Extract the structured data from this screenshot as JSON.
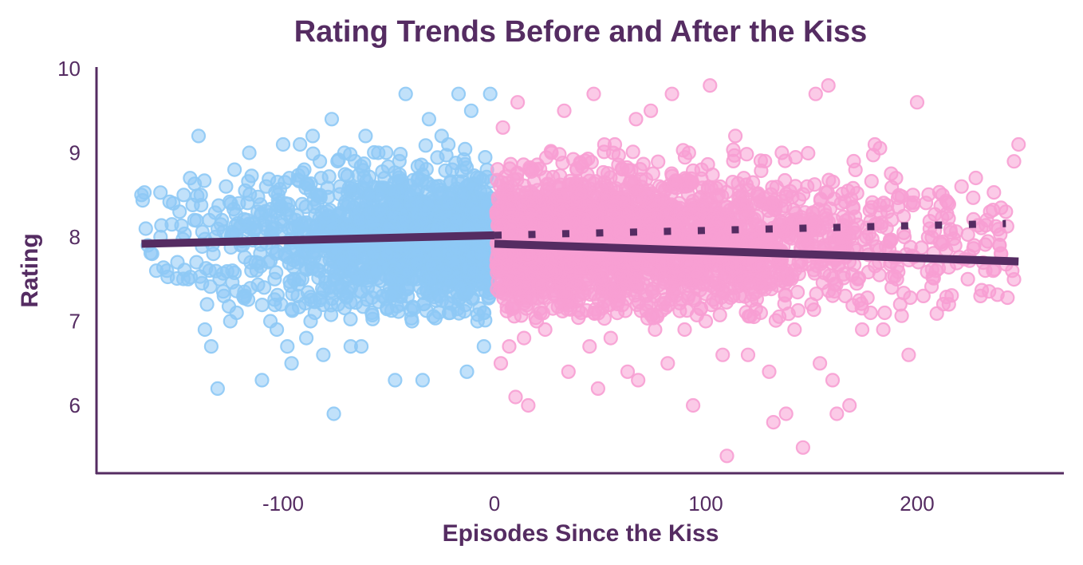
{
  "chart_data": {
    "type": "scatter",
    "title": "Rating Trends Before and After the Kiss",
    "xlabel": "Episodes Since the Kiss",
    "ylabel": "Rating",
    "xlim": [
      -170,
      250
    ],
    "ylim": [
      5.2,
      10.0
    ],
    "x_ticks": [
      "-100",
      "0",
      "100",
      "200"
    ],
    "y_ticks": [
      "6",
      "7",
      "8",
      "9",
      "10"
    ],
    "grid": false,
    "legend": "none",
    "colors": {
      "before": "#8ec9f5",
      "after": "#f79fd3",
      "trend": "#552c62",
      "text": "#552c62"
    },
    "series": [
      {
        "role": "before",
        "x_range": [
          -168,
          -1
        ],
        "points": [
          [
            -167,
            8.5
          ],
          [
            -165,
            8.1
          ],
          [
            -164,
            7.9
          ],
          [
            -162,
            7.8
          ],
          [
            -160,
            7.6
          ],
          [
            -158,
            8.0
          ],
          [
            -155,
            7.6
          ],
          [
            -152,
            8.4
          ],
          [
            -150,
            7.7
          ],
          [
            -149,
            8.3
          ],
          [
            -147,
            8.5
          ],
          [
            -145,
            7.5
          ],
          [
            -144,
            8.7
          ],
          [
            -142,
            8.2
          ],
          [
            -141,
            7.7
          ],
          [
            -140,
            9.2
          ],
          [
            -139,
            8.5
          ],
          [
            -137,
            6.9
          ],
          [
            -136,
            7.2
          ],
          [
            -135,
            8.2
          ],
          [
            -134,
            6.7
          ],
          [
            -133,
            7.8
          ],
          [
            -132,
            8.0
          ],
          [
            -131,
            6.2
          ],
          [
            -130,
            7.5
          ],
          [
            -129,
            8.2
          ],
          [
            -128,
            7.3
          ],
          [
            -127,
            8.6
          ],
          [
            -125,
            7.0
          ],
          [
            -124,
            7.6
          ],
          [
            -123,
            8.8
          ],
          [
            -122,
            7.1
          ],
          [
            -121,
            8.4
          ],
          [
            -120,
            7.9
          ],
          [
            -118,
            7.3
          ],
          [
            -117,
            8.2
          ],
          [
            -116,
            9.0
          ],
          [
            -115,
            7.6
          ],
          [
            -113,
            7.7
          ],
          [
            -112,
            8.3
          ],
          [
            -110,
            6.3
          ],
          [
            -109,
            7.4
          ],
          [
            -108,
            8.6
          ],
          [
            -106,
            7.0
          ],
          [
            -105,
            8.0
          ],
          [
            -104,
            7.5
          ],
          [
            -103,
            6.9
          ],
          [
            -102,
            8.4
          ],
          [
            -101,
            7.2
          ],
          [
            -100,
            9.1
          ],
          [
            -99,
            7.8
          ],
          [
            -98,
            6.7
          ],
          [
            -97,
            8.7
          ],
          [
            -96,
            6.5
          ],
          [
            -95,
            7.5
          ],
          [
            -94,
            8.2
          ],
          [
            -93,
            7.7
          ],
          [
            -92,
            9.1
          ],
          [
            -91,
            7.5
          ],
          [
            -90,
            8.8
          ],
          [
            -89,
            6.8
          ],
          [
            -88,
            7.9
          ],
          [
            -87,
            7.0
          ],
          [
            -86,
            9.2
          ],
          [
            -85,
            7.1
          ],
          [
            -84,
            8.5
          ],
          [
            -83,
            7.6
          ],
          [
            -82,
            8.7
          ],
          [
            -81,
            6.6
          ],
          [
            -80,
            7.9
          ],
          [
            -79,
            8.3
          ],
          [
            -78,
            7.4
          ],
          [
            -77,
            9.4
          ],
          [
            -76,
            5.9
          ],
          [
            -75,
            8.0
          ],
          [
            -74,
            7.2
          ],
          [
            -73,
            8.6
          ],
          [
            -72,
            7.7
          ],
          [
            -71,
            9.0
          ],
          [
            -70,
            7.3
          ],
          [
            -69,
            8.4
          ],
          [
            -68,
            6.7
          ],
          [
            -67,
            7.8
          ],
          [
            -66,
            8.9
          ],
          [
            -65,
            7.5
          ],
          [
            -64,
            8.2
          ],
          [
            -63,
            6.7
          ],
          [
            -62,
            7.9
          ],
          [
            -61,
            9.2
          ],
          [
            -60,
            7.4
          ],
          [
            -59,
            8.5
          ],
          [
            -58,
            7.1
          ],
          [
            -57,
            8.0
          ],
          [
            -56,
            7.6
          ],
          [
            -55,
            9.0
          ],
          [
            -54,
            8.3
          ],
          [
            -53,
            7.3
          ],
          [
            -52,
            8.7
          ],
          [
            -51,
            7.8
          ],
          [
            -50,
            8.1
          ],
          [
            -49,
            7.5
          ],
          [
            -48,
            8.4
          ],
          [
            -47,
            6.3
          ],
          [
            -46,
            7.9
          ],
          [
            -45,
            8.9
          ],
          [
            -44,
            7.2
          ],
          [
            -43,
            8.2
          ],
          [
            -42,
            9.7
          ],
          [
            -41,
            7.6
          ],
          [
            -40,
            8.5
          ],
          [
            -39,
            7.0
          ],
          [
            -38,
            8.0
          ],
          [
            -37,
            7.7
          ],
          [
            -36,
            8.7
          ],
          [
            -35,
            7.4
          ],
          [
            -34,
            6.3
          ],
          [
            -33,
            8.3
          ],
          [
            -32,
            7.9
          ],
          [
            -31,
            9.4
          ],
          [
            -30,
            7.5
          ],
          [
            -29,
            8.6
          ],
          [
            -28,
            7.8
          ],
          [
            -27,
            8.1
          ],
          [
            -26,
            7.3
          ],
          [
            -25,
            9.2
          ],
          [
            -24,
            8.0
          ],
          [
            -23,
            7.6
          ],
          [
            -22,
            8.4
          ],
          [
            -21,
            7.1
          ],
          [
            -20,
            8.8
          ],
          [
            -19,
            7.7
          ],
          [
            -18,
            8.2
          ],
          [
            -17,
            9.7
          ],
          [
            -16,
            7.4
          ],
          [
            -15,
            8.5
          ],
          [
            -14,
            7.9
          ],
          [
            -13,
            6.4
          ],
          [
            -12,
            8.1
          ],
          [
            -11,
            9.5
          ],
          [
            -10,
            7.6
          ],
          [
            -9,
            8.3
          ],
          [
            -8,
            7.0
          ],
          [
            -7,
            8.7
          ],
          [
            -6,
            7.8
          ],
          [
            -5,
            6.7
          ],
          [
            -4,
            8.4
          ],
          [
            -3,
            7.5
          ],
          [
            -2,
            9.7
          ],
          [
            -1,
            7.9
          ]
        ]
      },
      {
        "role": "after",
        "x_range": [
          1,
          250
        ],
        "points": [
          [
            1,
            8.3
          ],
          [
            2,
            7.6
          ],
          [
            3,
            6.5
          ],
          [
            4,
            9.3
          ],
          [
            5,
            7.9
          ],
          [
            7,
            6.7
          ],
          [
            8,
            8.6
          ],
          [
            9,
            7.2
          ],
          [
            10,
            6.1
          ],
          [
            11,
            9.6
          ],
          [
            12,
            7.8
          ],
          [
            13,
            8.4
          ],
          [
            14,
            6.8
          ],
          [
            15,
            7.4
          ],
          [
            16,
            6.0
          ],
          [
            18,
            8.8
          ],
          [
            20,
            7.0
          ],
          [
            22,
            8.1
          ],
          [
            24,
            6.9
          ],
          [
            25,
            7.6
          ],
          [
            27,
            9.0
          ],
          [
            29,
            7.3
          ],
          [
            31,
            8.5
          ],
          [
            33,
            9.5
          ],
          [
            35,
            6.4
          ],
          [
            37,
            7.9
          ],
          [
            39,
            8.8
          ],
          [
            41,
            7.1
          ],
          [
            43,
            8.2
          ],
          [
            45,
            6.7
          ],
          [
            47,
            9.7
          ],
          [
            49,
            6.2
          ],
          [
            51,
            7.5
          ],
          [
            53,
            8.6
          ],
          [
            55,
            6.8
          ],
          [
            57,
            9.1
          ],
          [
            59,
            7.3
          ],
          [
            61,
            8.4
          ],
          [
            63,
            6.4
          ],
          [
            65,
            7.8
          ],
          [
            67,
            9.4
          ],
          [
            68,
            6.3
          ],
          [
            70,
            8.0
          ],
          [
            72,
            7.2
          ],
          [
            74,
            9.5
          ],
          [
            76,
            6.9
          ],
          [
            78,
            8.6
          ],
          [
            80,
            7.5
          ],
          [
            82,
            6.5
          ],
          [
            84,
            9.7
          ],
          [
            86,
            7.9
          ],
          [
            88,
            8.3
          ],
          [
            90,
            6.9
          ],
          [
            92,
            9.0
          ],
          [
            94,
            6.0
          ],
          [
            96,
            7.6
          ],
          [
            98,
            8.8
          ],
          [
            100,
            7.0
          ],
          [
            102,
            9.8
          ],
          [
            104,
            7.4
          ],
          [
            106,
            8.5
          ],
          [
            108,
            6.6
          ],
          [
            110,
            5.4
          ],
          [
            112,
            8.1
          ],
          [
            114,
            9.2
          ],
          [
            116,
            7.3
          ],
          [
            118,
            8.7
          ],
          [
            120,
            6.6
          ],
          [
            122,
            7.9
          ],
          [
            124,
            8.4
          ],
          [
            126,
            7.1
          ],
          [
            128,
            8.9
          ],
          [
            130,
            6.4
          ],
          [
            132,
            5.8
          ],
          [
            134,
            7.5
          ],
          [
            136,
            9.0
          ],
          [
            138,
            5.9
          ],
          [
            140,
            8.2
          ],
          [
            142,
            6.9
          ],
          [
            144,
            7.7
          ],
          [
            146,
            5.5
          ],
          [
            148,
            8.6
          ],
          [
            150,
            7.2
          ],
          [
            152,
            9.7
          ],
          [
            154,
            6.5
          ],
          [
            156,
            7.9
          ],
          [
            158,
            9.8
          ],
          [
            160,
            6.3
          ],
          [
            162,
            5.9
          ],
          [
            164,
            8.4
          ],
          [
            166,
            7.3
          ],
          [
            168,
            6.0
          ],
          [
            170,
            8.9
          ],
          [
            172,
            7.5
          ],
          [
            174,
            6.9
          ],
          [
            176,
            8.0
          ],
          [
            178,
            7.1
          ],
          [
            180,
            9.1
          ],
          [
            182,
            7.7
          ],
          [
            184,
            6.9
          ],
          [
            186,
            8.3
          ],
          [
            188,
            7.4
          ],
          [
            190,
            8.7
          ],
          [
            192,
            7.2
          ],
          [
            194,
            8.0
          ],
          [
            196,
            6.6
          ],
          [
            198,
            8.5
          ],
          [
            200,
            9.6
          ],
          [
            203,
            7.3
          ],
          [
            206,
            8.1
          ],
          [
            209,
            7.6
          ],
          [
            212,
            8.5
          ],
          [
            215,
            7.2
          ],
          [
            218,
            7.9
          ],
          [
            221,
            8.6
          ],
          [
            224,
            7.5
          ],
          [
            227,
            7.9
          ],
          [
            230,
            7.3
          ],
          [
            233,
            8.2
          ],
          [
            236,
            7.6
          ],
          [
            239,
            7.9
          ],
          [
            242,
            8.3
          ],
          [
            245,
            7.6
          ],
          [
            248,
            9.1
          ]
        ]
      }
    ],
    "trend_lines": [
      {
        "role": "before",
        "style": "solid",
        "x": [
          -167,
          0
        ],
        "y": [
          7.92,
          8.02
        ]
      },
      {
        "role": "after",
        "style": "solid",
        "x": [
          0,
          248
        ],
        "y": [
          7.92,
          7.71
        ]
      },
      {
        "role": "after",
        "style": "dotted",
        "x": [
          0,
          242
        ],
        "y": [
          8.02,
          8.16
        ]
      }
    ]
  }
}
